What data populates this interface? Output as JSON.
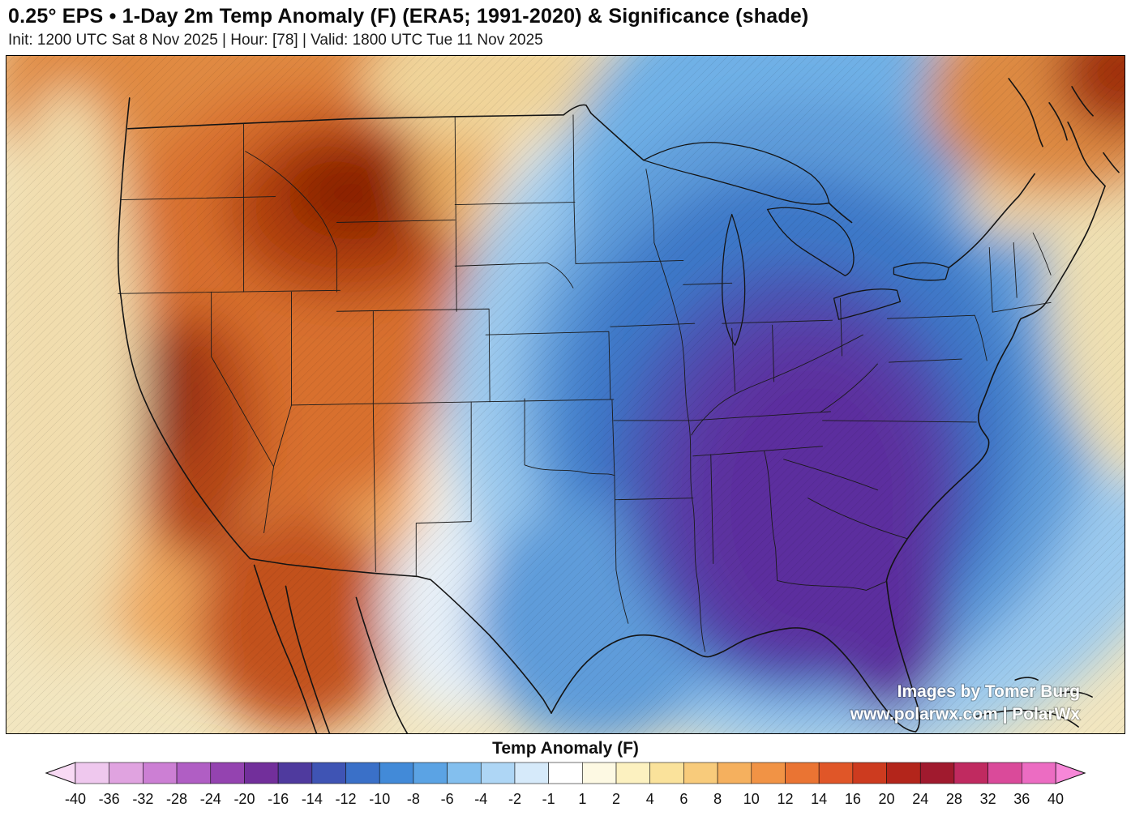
{
  "header": {
    "title": "0.25° EPS • 1-Day 2m Temp Anomaly (F) (ERA5; 1991-2020) & Significance (shade)",
    "subtitle": "Init: 1200 UTC Sat 8 Nov 2025 | Hour: [78] | Valid: 1800 UTC Tue 11 Nov 2025"
  },
  "map": {
    "attribution_line1": "Images by Tomer Burg",
    "attribution_line2": "www.polarwx.com | PolarWx"
  },
  "colorbar": {
    "label": "Temp Anomaly (F)",
    "ticks": [
      "-40",
      "-36",
      "-32",
      "-28",
      "-24",
      "-20",
      "-16",
      "-14",
      "-12",
      "-10",
      "-8",
      "-6",
      "-4",
      "-2",
      "-1",
      "1",
      "2",
      "4",
      "6",
      "8",
      "10",
      "12",
      "14",
      "16",
      "20",
      "24",
      "28",
      "32",
      "36",
      "40"
    ],
    "segment_colors": [
      "#efc8ee",
      "#e0a3e0",
      "#cc7fd4",
      "#b05ec4",
      "#9443b0",
      "#722f9b",
      "#4f3a9e",
      "#3f54b4",
      "#3a70c8",
      "#428ad8",
      "#5ba3e4",
      "#83bfee",
      "#aed6f5",
      "#d6eafa",
      "#ffffff",
      "#fdf9e3",
      "#fcf1c0",
      "#fae29b",
      "#f8cb7b",
      "#f5b05e",
      "#f19345",
      "#ea7433",
      "#e05628",
      "#cd3b1f",
      "#b3251b",
      "#a01a2e",
      "#c02a60",
      "#da4a9a",
      "#ec6cc2"
    ],
    "arrow_left_color": "#f8daf4",
    "arrow_right_color": "#f787d8"
  }
}
